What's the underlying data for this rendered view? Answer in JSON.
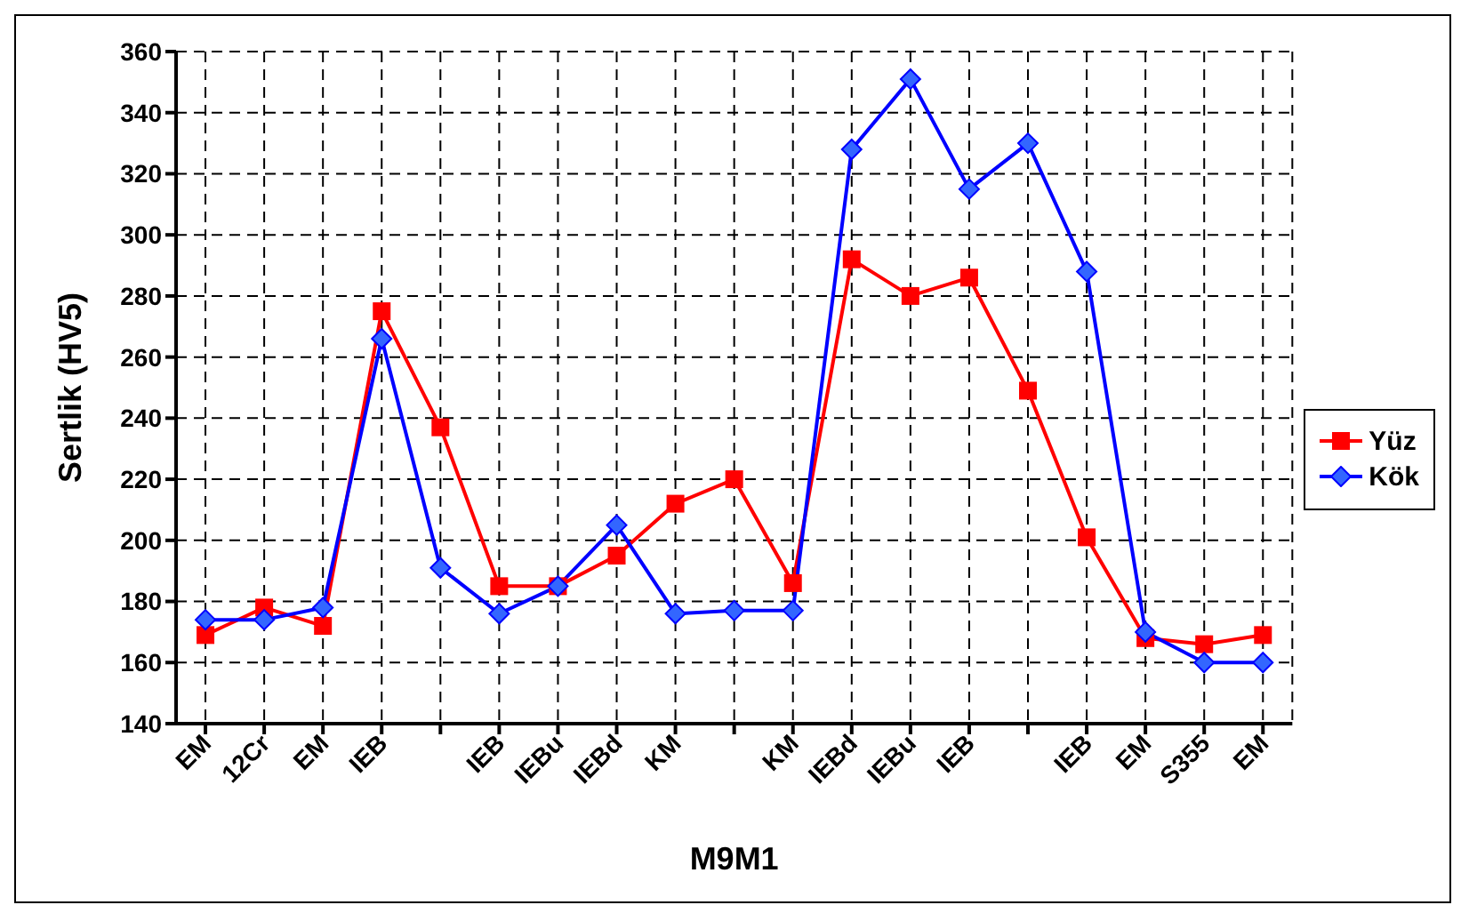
{
  "chart_data": {
    "type": "line",
    "xlabel": "M9M1",
    "ylabel": "Sertlik (HV5)",
    "categories": [
      "EM",
      "12Cr",
      "EM",
      "IEB",
      null,
      "IEB",
      "IEBu",
      "IEBd",
      "KM",
      null,
      "KM",
      "IEBd",
      "IEBu",
      "IEB",
      null,
      "IEB",
      "EM",
      "S355",
      "EM"
    ],
    "series": [
      {
        "name": "Yüz",
        "color": "#ff0000",
        "marker": "square",
        "values": [
          169,
          178,
          172,
          275,
          237,
          185,
          185,
          195,
          212,
          220,
          186,
          292,
          280,
          286,
          249,
          201,
          168,
          166,
          169
        ]
      },
      {
        "name": "Kök",
        "color": "#0000ff",
        "marker": "diamond",
        "values": [
          174,
          174,
          178,
          266,
          191,
          176,
          185,
          205,
          176,
          177,
          177,
          328,
          351,
          315,
          330,
          288,
          170,
          160,
          160
        ]
      }
    ],
    "ylim": [
      140,
      360
    ],
    "yticks": [
      140,
      160,
      180,
      200,
      220,
      240,
      260,
      280,
      300,
      320,
      340,
      360
    ],
    "grid": true,
    "legend": "right",
    "line_style": "solid"
  }
}
